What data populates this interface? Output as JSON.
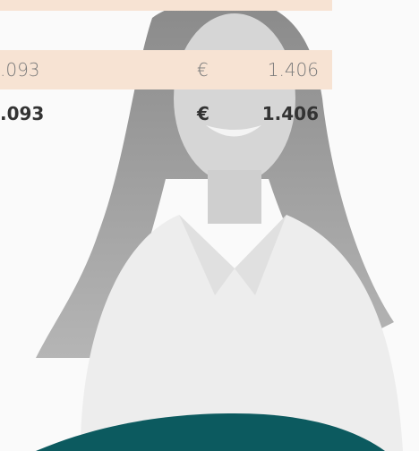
{
  "rows": [
    {
      "amount": ".093",
      "currency": "€",
      "total": "1.406"
    },
    {
      "amount": ".093",
      "currency": "€",
      "total": "1.406"
    }
  ]
}
